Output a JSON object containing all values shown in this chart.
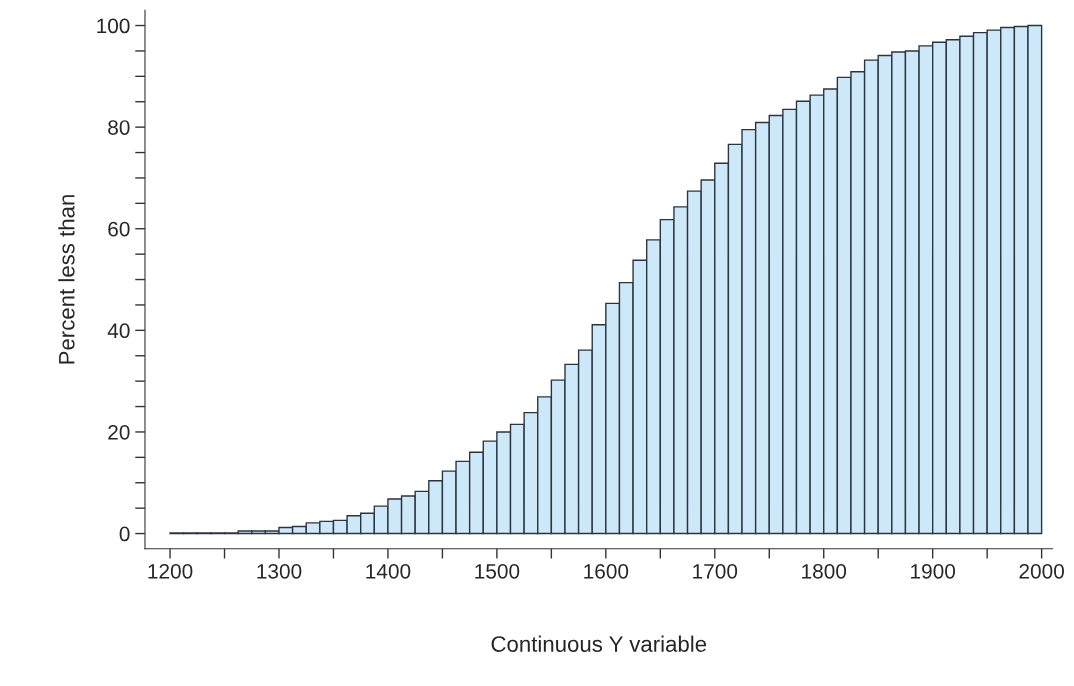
{
  "chart_data": {
    "type": "histogram",
    "xlabel": "Continuous Y variable",
    "ylabel": "Percent less than",
    "bins": [
      1200,
      1212.5,
      1225,
      1237.5,
      1250,
      1262.5,
      1275,
      1287.5,
      1300,
      1312.5,
      1325,
      1337.5,
      1350,
      1362.5,
      1375,
      1387.5,
      1400,
      1412.5,
      1425,
      1437.5,
      1450,
      1462.5,
      1475,
      1487.5,
      1500,
      1512.5,
      1525,
      1537.5,
      1550,
      1562.5,
      1575,
      1587.5,
      1600,
      1612.5,
      1625,
      1637.5,
      1650,
      1662.5,
      1675,
      1687.5,
      1700,
      1712.5,
      1725,
      1737.5,
      1750,
      1762.5,
      1775,
      1787.5,
      1800,
      1812.5,
      1825,
      1837.5,
      1850,
      1862.5,
      1875,
      1887.5,
      1900,
      1912.5,
      1925,
      1937.5,
      1950,
      1962.5,
      1975,
      1987.5,
      2000
    ],
    "values": [
      0.1,
      0.1,
      0.1,
      0.1,
      0.1,
      0.5,
      0.5,
      0.5,
      1.2,
      1.4,
      2.1,
      2.4,
      2.6,
      3.5,
      4.0,
      5.4,
      6.8,
      7.4,
      8.3,
      10.4,
      12.3,
      14.2,
      16.0,
      18.2,
      20.0,
      21.5,
      23.8,
      26.9,
      30.2,
      33.3,
      36.1,
      41.1,
      45.3,
      49.4,
      53.8,
      57.8,
      61.8,
      64.3,
      67.4,
      69.6,
      72.9,
      76.6,
      79.5,
      80.9,
      82.3,
      83.5,
      85.1,
      86.3,
      87.5,
      89.8,
      90.9,
      93.2,
      94.1,
      94.8,
      95.0,
      96.0,
      96.7,
      97.2,
      97.9,
      98.6,
      99.1,
      99.6,
      99.8,
      100
    ],
    "color": "#cde9f9",
    "xlim": [
      1177,
      2010
    ],
    "ylim": [
      -3,
      103
    ],
    "xticks": [
      1200,
      {
        "value": 1250,
        "label": null
      },
      1300,
      {
        "value": 1350,
        "label": null
      },
      1400,
      {
        "value": 1450,
        "label": null
      },
      1500,
      {
        "value": 1550,
        "label": null
      },
      1600,
      {
        "value": 1650,
        "label": null
      },
      1700,
      {
        "value": 1750,
        "label": null
      },
      1800,
      {
        "value": 1850,
        "label": null
      },
      1900,
      {
        "value": 1950,
        "label": null
      },
      2000
    ],
    "yticks": [
      0,
      {
        "value": 5,
        "label": null
      },
      {
        "value": 10,
        "label": null
      },
      {
        "value": 15,
        "label": null
      },
      20,
      {
        "value": 25,
        "label": null
      },
      {
        "value": 30,
        "label": null
      },
      {
        "value": 35,
        "label": null
      },
      40,
      {
        "value": 45,
        "label": null
      },
      {
        "value": 50,
        "label": null
      },
      {
        "value": 55,
        "label": null
      },
      60,
      {
        "value": 65,
        "label": null
      },
      {
        "value": 70,
        "label": null
      },
      {
        "value": 75,
        "label": null
      },
      80,
      {
        "value": 85,
        "label": null
      },
      {
        "value": 90,
        "label": null
      },
      {
        "value": 95,
        "label": null
      },
      100
    ],
    "grid": false,
    "legend": false
  }
}
